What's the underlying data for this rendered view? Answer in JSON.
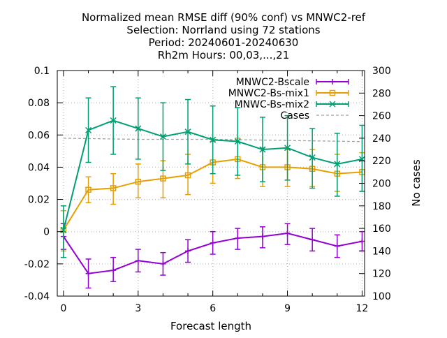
{
  "chart_data": {
    "type": "line",
    "title": [
      "Normalized mean RMSE diff (90% conf) vs MNWC2-ref",
      "Selection: Norrland using    72 stations",
      "Period: 20240601-20240630",
      "Rh2m   Hours: 00,03,...,21"
    ],
    "xlabel": "Forecast length",
    "ylabel": "",
    "y2label": "No cases",
    "xlim": [
      -0.25,
      12.1
    ],
    "ylim": [
      -0.04,
      0.1
    ],
    "y2lim": [
      100,
      300
    ],
    "x_ticks": [
      0,
      3,
      6,
      9,
      12
    ],
    "y_ticks": [
      -0.04,
      -0.02,
      0,
      0.02,
      0.04,
      0.06,
      0.08,
      0.1
    ],
    "y_tick_labels": [
      "-0.04",
      "-0.02",
      "0",
      "0.02",
      "0.04",
      "0.06",
      "0.08",
      "0.1"
    ],
    "y2_ticks": [
      100,
      120,
      140,
      160,
      180,
      200,
      220,
      240,
      260,
      280,
      300
    ],
    "grid": true,
    "legend_position": "top-right",
    "x": [
      0,
      1,
      2,
      3,
      4,
      5,
      6,
      7,
      8,
      9,
      10,
      11,
      12
    ],
    "series": [
      {
        "name": "MNWC2-Bscale",
        "color": "#9400d3",
        "marker": "plus",
        "values": [
          -0.003,
          -0.026,
          -0.024,
          -0.018,
          -0.02,
          -0.012,
          -0.007,
          -0.004,
          -0.003,
          -0.001,
          -0.005,
          -0.009,
          -0.006
        ],
        "err_low": [
          -0.011,
          -0.035,
          -0.031,
          -0.025,
          -0.027,
          -0.019,
          -0.014,
          -0.011,
          -0.01,
          -0.008,
          -0.012,
          -0.016,
          -0.012
        ],
        "err_high": [
          0.005,
          -0.017,
          -0.016,
          -0.011,
          -0.013,
          -0.005,
          0.0,
          0.002,
          0.003,
          0.005,
          0.002,
          -0.002,
          0.0
        ]
      },
      {
        "name": "MNWC2-Bs-mix1",
        "color": "#e69f00",
        "marker": "open-square",
        "values": [
          0.001,
          0.026,
          0.027,
          0.031,
          0.033,
          0.035,
          0.043,
          0.045,
          0.04,
          0.04,
          0.039,
          0.036,
          0.037
        ],
        "err_low": [
          -0.012,
          0.018,
          0.017,
          0.021,
          0.021,
          0.023,
          0.03,
          0.033,
          0.028,
          0.028,
          0.028,
          0.025,
          0.025
        ],
        "err_high": [
          0.013,
          0.034,
          0.036,
          0.042,
          0.044,
          0.048,
          0.056,
          0.058,
          0.052,
          0.051,
          0.051,
          0.048,
          0.049
        ]
      },
      {
        "name": "MNWC-Bs-mix2",
        "color": "#009e73",
        "marker": "cross",
        "values": [
          0.001,
          0.063,
          0.069,
          0.064,
          0.059,
          0.062,
          0.057,
          0.056,
          0.051,
          0.052,
          0.046,
          0.042,
          0.045
        ],
        "err_low": [
          -0.016,
          0.043,
          0.048,
          0.045,
          0.038,
          0.042,
          0.036,
          0.035,
          0.031,
          0.032,
          0.027,
          0.022,
          0.025
        ],
        "err_high": [
          0.016,
          0.083,
          0.09,
          0.083,
          0.08,
          0.082,
          0.078,
          0.077,
          0.071,
          0.072,
          0.064,
          0.061,
          0.066
        ]
      },
      {
        "name": "Cases",
        "color": "#a0a0a0",
        "axis": "y2",
        "dashed": true,
        "x": [
          0,
          3,
          6,
          9,
          12
        ],
        "values": [
          240,
          239,
          239,
          238,
          237
        ]
      }
    ]
  }
}
